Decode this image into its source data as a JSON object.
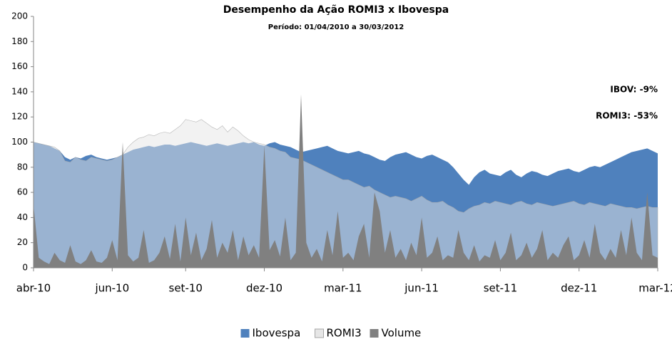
{
  "chart_data": {
    "type": "area",
    "title": "Desempenho da Ação ROMI3 x Ibovespa",
    "subtitle": "Período: 01/04/2010 a 30/03/2012",
    "annotations": [
      "IBOV: -9%",
      "ROMI3: -53%"
    ],
    "categories": [
      "abr-10",
      null,
      null,
      null,
      null,
      null,
      null,
      null,
      null,
      null,
      null,
      null,
      null,
      null,
      null,
      "jun-10",
      null,
      null,
      null,
      null,
      null,
      null,
      null,
      null,
      null,
      null,
      null,
      null,
      null,
      "set-10",
      null,
      null,
      null,
      null,
      null,
      null,
      null,
      null,
      null,
      null,
      null,
      null,
      null,
      null,
      "dez-10",
      null,
      null,
      null,
      null,
      null,
      null,
      null,
      null,
      null,
      null,
      null,
      null,
      null,
      null,
      "mar-11",
      null,
      null,
      null,
      null,
      null,
      null,
      null,
      null,
      null,
      null,
      null,
      null,
      null,
      null,
      "jun-11",
      null,
      null,
      null,
      null,
      null,
      null,
      null,
      null,
      null,
      null,
      null,
      null,
      null,
      null,
      "set-11",
      null,
      null,
      null,
      null,
      null,
      null,
      null,
      null,
      null,
      null,
      null,
      null,
      null,
      null,
      "dez-11",
      null,
      null,
      null,
      null,
      null,
      null,
      null,
      null,
      null,
      null,
      null,
      null,
      null,
      null,
      "mar-12"
    ],
    "series": [
      {
        "name": "Ibovespa",
        "color": "#4f81bd",
        "values": [
          100,
          99,
          98,
          97,
          95,
          93,
          88,
          86,
          88,
          87,
          89,
          90,
          88,
          87,
          86,
          87,
          88,
          90,
          92,
          94,
          95,
          96,
          97,
          96,
          97,
          98,
          98,
          97,
          98,
          99,
          100,
          99,
          98,
          97,
          98,
          99,
          98,
          97,
          98,
          99,
          100,
          99,
          100,
          98,
          97,
          99,
          100,
          98,
          97,
          96,
          94,
          92,
          93,
          94,
          95,
          96,
          97,
          95,
          93,
          92,
          91,
          92,
          93,
          91,
          90,
          88,
          86,
          85,
          88,
          90,
          91,
          92,
          90,
          88,
          87,
          89,
          90,
          88,
          86,
          84,
          80,
          75,
          70,
          66,
          72,
          76,
          78,
          75,
          74,
          73,
          76,
          78,
          74,
          72,
          75,
          77,
          76,
          74,
          73,
          75,
          77,
          78,
          79,
          77,
          76,
          78,
          80,
          81,
          80,
          82,
          84,
          86,
          88,
          90,
          92,
          93,
          94,
          95,
          93,
          91
        ]
      },
      {
        "name": "ROMI3",
        "color": "#e6e6e6",
        "values": [
          100,
          99,
          98,
          97,
          96,
          93,
          85,
          84,
          88,
          86,
          85,
          88,
          87,
          86,
          85,
          86,
          88,
          90,
          96,
          100,
          103,
          104,
          106,
          105,
          107,
          108,
          107,
          110,
          113,
          118,
          117,
          116,
          118,
          115,
          112,
          110,
          113,
          108,
          112,
          109,
          105,
          102,
          100,
          99,
          98,
          96,
          95,
          93,
          92,
          88,
          87,
          86,
          84,
          82,
          80,
          78,
          76,
          74,
          72,
          70,
          70,
          68,
          66,
          64,
          65,
          62,
          60,
          58,
          56,
          57,
          56,
          55,
          53,
          55,
          57,
          54,
          52,
          52,
          53,
          50,
          48,
          45,
          44,
          47,
          49,
          50,
          52,
          51,
          53,
          52,
          51,
          50,
          52,
          53,
          51,
          50,
          52,
          51,
          50,
          49,
          50,
          51,
          52,
          53,
          51,
          50,
          52,
          51,
          50,
          49,
          51,
          50,
          49,
          48,
          48,
          47,
          48,
          49,
          48,
          48
        ]
      },
      {
        "name": "Volume",
        "color": "#808080",
        "values": [
          50,
          8,
          5,
          3,
          12,
          6,
          4,
          18,
          5,
          3,
          6,
          14,
          5,
          4,
          8,
          22,
          6,
          100,
          10,
          5,
          8,
          30,
          4,
          6,
          12,
          25,
          7,
          35,
          5,
          40,
          10,
          28,
          6,
          15,
          38,
          8,
          20,
          12,
          30,
          6,
          25,
          10,
          18,
          8,
          97,
          14,
          22,
          9,
          40,
          6,
          12,
          138,
          20,
          8,
          15,
          5,
          30,
          10,
          45,
          8,
          12,
          6,
          25,
          35,
          8,
          60,
          45,
          12,
          30,
          8,
          15,
          6,
          20,
          10,
          40,
          8,
          12,
          25,
          6,
          10,
          8,
          30,
          12,
          6,
          18,
          5,
          10,
          8,
          22,
          6,
          12,
          28,
          6,
          10,
          20,
          8,
          15,
          30,
          6,
          12,
          8,
          18,
          25,
          6,
          10,
          22,
          8,
          35,
          12,
          6,
          15,
          8,
          30,
          10,
          40,
          12,
          6,
          60,
          10,
          8
        ]
      }
    ],
    "ylim": [
      0,
      200
    ],
    "yticks": [
      0,
      20,
      40,
      60,
      80,
      100,
      120,
      140,
      160,
      180,
      200
    ],
    "grid": false,
    "legend": "bottom"
  }
}
